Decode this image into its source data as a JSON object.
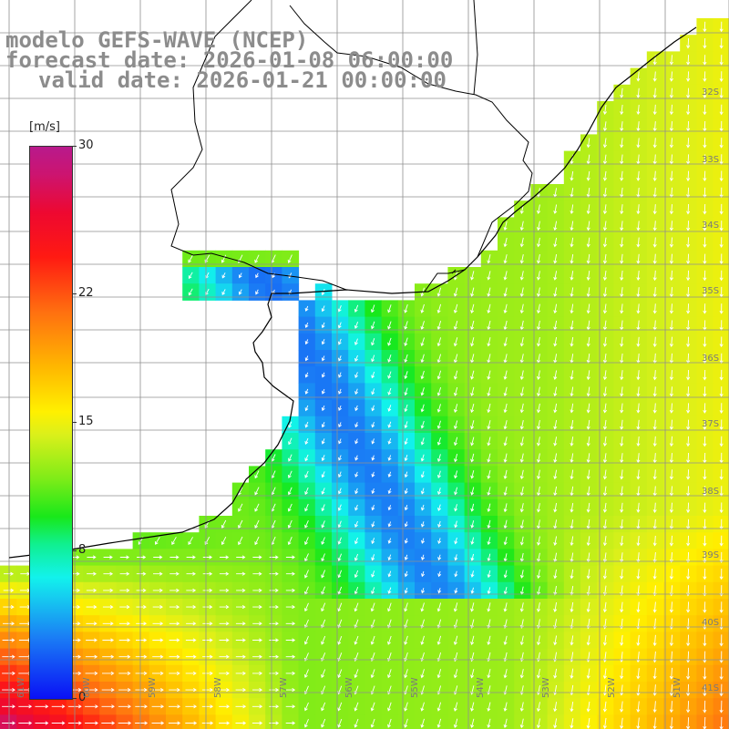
{
  "title": {
    "line1": "modelo GEFS-WAVE (NCEP)",
    "line2": "forecast date: 2026-01-08 06:00:00",
    "line3": "valid date: 2026-01-21 00:00:00"
  },
  "colorbar": {
    "unit": "[m/s]",
    "min": 0,
    "max": 30,
    "ticks": [
      "30",
      "22",
      "15",
      "8",
      "0"
    ],
    "tick_values": [
      30,
      22,
      15,
      8,
      0
    ]
  },
  "map": {
    "lat_labels": [
      "32S",
      "33S",
      "34S",
      "35S",
      "36S",
      "37S",
      "38S",
      "39S",
      "40S",
      "41S"
    ],
    "lon_labels": [
      "61W",
      "60W",
      "59W",
      "58W",
      "57W",
      "56W",
      "55W",
      "54W",
      "53W",
      "52W",
      "51W"
    ],
    "colors": {
      "land": "#ffffff",
      "coast": "#000000",
      "grid": "#909090",
      "arrows": "#ffffff"
    }
  }
}
